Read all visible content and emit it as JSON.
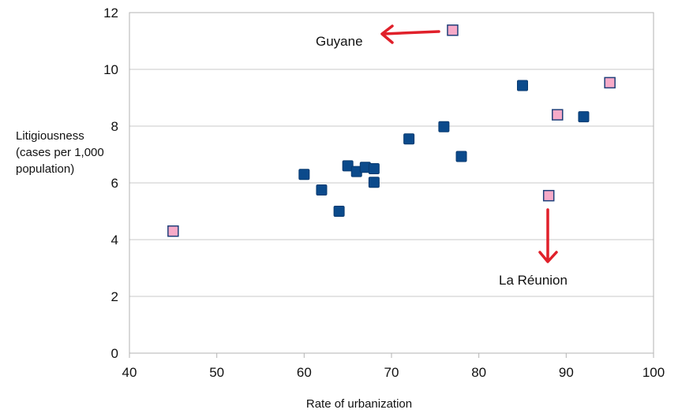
{
  "chart_data": {
    "type": "scatter",
    "title": "",
    "xlabel": "Rate of urbanization",
    "ylabel_lines": [
      "Litigiousness",
      "(cases per 1,000",
      "population)"
    ],
    "xlim": [
      40,
      100
    ],
    "ylim": [
      0,
      12
    ],
    "x_ticks": [
      "40",
      "50",
      "60",
      "70",
      "80",
      "90",
      "100"
    ],
    "y_ticks": [
      "0",
      "2",
      "4",
      "6",
      "8",
      "10",
      "12"
    ],
    "grid": "horizontal",
    "legend": "none",
    "series": [
      {
        "color": "#0b4a8b",
        "points": [
          {
            "x": 60,
            "y": 6.3
          },
          {
            "x": 62,
            "y": 5.75
          },
          {
            "x": 64,
            "y": 5.0
          },
          {
            "x": 65,
            "y": 6.6
          },
          {
            "x": 66,
            "y": 6.4
          },
          {
            "x": 67,
            "y": 6.55
          },
          {
            "x": 68,
            "y": 6.5
          },
          {
            "x": 68,
            "y": 6.02
          },
          {
            "x": 72,
            "y": 7.55
          },
          {
            "x": 76,
            "y": 7.98
          },
          {
            "x": 78,
            "y": 6.93
          },
          {
            "x": 85,
            "y": 9.43
          },
          {
            "x": 92,
            "y": 8.33
          }
        ]
      },
      {
        "color": "#f7aac8",
        "border": "#1f3f7a",
        "points": [
          {
            "x": 45,
            "y": 4.3
          },
          {
            "x": 77,
            "y": 11.38
          },
          {
            "x": 88,
            "y": 5.55
          },
          {
            "x": 89,
            "y": 8.4
          },
          {
            "x": 95,
            "y": 9.53
          }
        ]
      }
    ],
    "annotations": [
      {
        "text": "Guyane",
        "arrow_color": "#e0202a"
      },
      {
        "text": "La Réunion",
        "arrow_color": "#e0202a"
      }
    ]
  }
}
